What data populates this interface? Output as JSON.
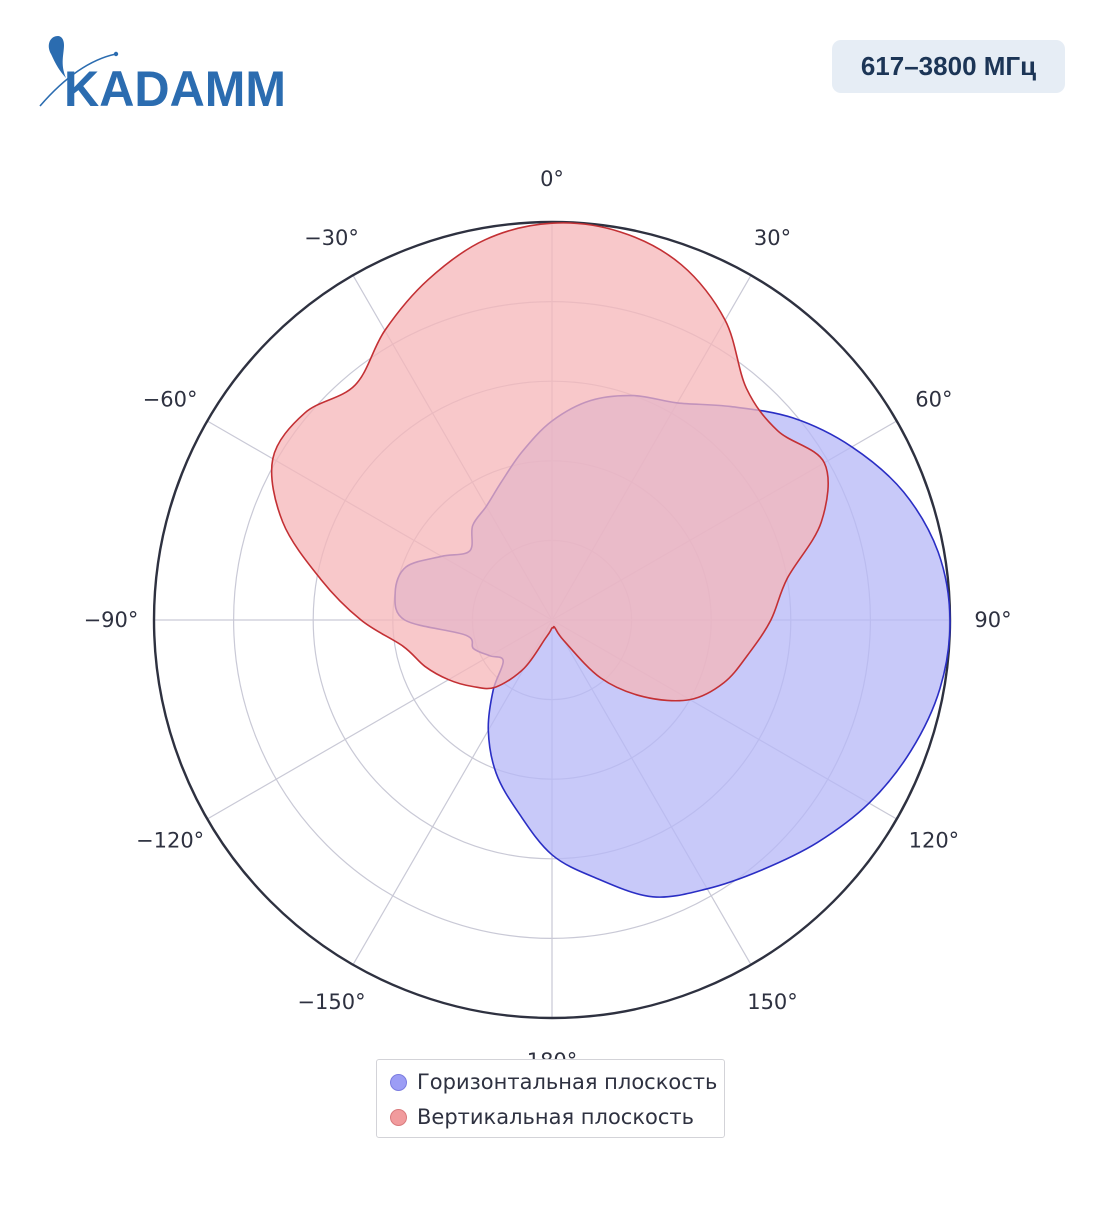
{
  "logo": {
    "text": "KADAMM"
  },
  "badge": {
    "text": "617–3800 МГц"
  },
  "chart_data": {
    "type": "polar-area",
    "angular_ticks": [
      {
        "deg": 0,
        "label": "0°"
      },
      {
        "deg": 30,
        "label": "30°"
      },
      {
        "deg": 60,
        "label": "60°"
      },
      {
        "deg": 90,
        "label": "90°"
      },
      {
        "deg": 120,
        "label": "120°"
      },
      {
        "deg": 150,
        "label": "150°"
      },
      {
        "deg": 180,
        "label": "180°"
      },
      {
        "deg": -150,
        "label": "−150°"
      },
      {
        "deg": -120,
        "label": "−120°"
      },
      {
        "deg": -90,
        "label": "−90°"
      },
      {
        "deg": -60,
        "label": "−60°"
      },
      {
        "deg": -30,
        "label": "−30°"
      }
    ],
    "radial_range": [
      0,
      1
    ],
    "radial_grid": [
      0.2,
      0.4,
      0.6,
      0.8
    ],
    "grid": true,
    "legend_position": "bottom",
    "series": [
      {
        "name": "Горизонтальная плоскость",
        "fill": "#b6b7f7",
        "stroke": "#2a2ec4",
        "points": [
          [
            0,
            0.5
          ],
          [
            10,
            0.56
          ],
          [
            20,
            0.6
          ],
          [
            30,
            0.63
          ],
          [
            40,
            0.7
          ],
          [
            50,
            0.79
          ],
          [
            60,
            0.87
          ],
          [
            70,
            0.94
          ],
          [
            80,
            0.985
          ],
          [
            90,
            1.0
          ],
          [
            100,
            0.99
          ],
          [
            110,
            0.96
          ],
          [
            120,
            0.92
          ],
          [
            130,
            0.87
          ],
          [
            140,
            0.82
          ],
          [
            150,
            0.78
          ],
          [
            160,
            0.74
          ],
          [
            170,
            0.66
          ],
          [
            180,
            0.59
          ],
          [
            190,
            0.49
          ],
          [
            200,
            0.41
          ],
          [
            210,
            0.32
          ],
          [
            220,
            0.23
          ],
          [
            230,
            0.16
          ],
          [
            240,
            0.18
          ],
          [
            250,
            0.21
          ],
          [
            260,
            0.22
          ],
          [
            270,
            0.37
          ],
          [
            280,
            0.4
          ],
          [
            290,
            0.39
          ],
          [
            300,
            0.32
          ],
          [
            310,
            0.27
          ],
          [
            320,
            0.31
          ],
          [
            330,
            0.33
          ],
          [
            340,
            0.37
          ],
          [
            350,
            0.43
          ]
        ]
      },
      {
        "name": "Вертикальная плоскость",
        "fill": "#f6b6b8",
        "stroke": "#c33034",
        "points": [
          [
            0,
            0.997
          ],
          [
            10,
            0.99
          ],
          [
            20,
            0.95
          ],
          [
            30,
            0.87
          ],
          [
            40,
            0.76
          ],
          [
            50,
            0.74
          ],
          [
            60,
            0.79
          ],
          [
            70,
            0.72
          ],
          [
            80,
            0.6
          ],
          [
            90,
            0.55
          ],
          [
            100,
            0.5
          ],
          [
            110,
            0.46
          ],
          [
            120,
            0.4
          ],
          [
            130,
            0.3
          ],
          [
            140,
            0.19
          ],
          [
            150,
            0.06
          ],
          [
            160,
            0.02
          ],
          [
            170,
            0.02
          ],
          [
            180,
            0.02
          ],
          [
            190,
            0.03
          ],
          [
            200,
            0.05
          ],
          [
            210,
            0.14
          ],
          [
            220,
            0.22
          ],
          [
            230,
            0.26
          ],
          [
            240,
            0.3
          ],
          [
            250,
            0.34
          ],
          [
            260,
            0.38
          ],
          [
            270,
            0.48
          ],
          [
            280,
            0.59
          ],
          [
            290,
            0.72
          ],
          [
            300,
            0.81
          ],
          [
            310,
            0.81
          ],
          [
            320,
            0.77
          ],
          [
            330,
            0.84
          ],
          [
            340,
            0.91
          ],
          [
            350,
            0.97
          ]
        ]
      }
    ]
  }
}
